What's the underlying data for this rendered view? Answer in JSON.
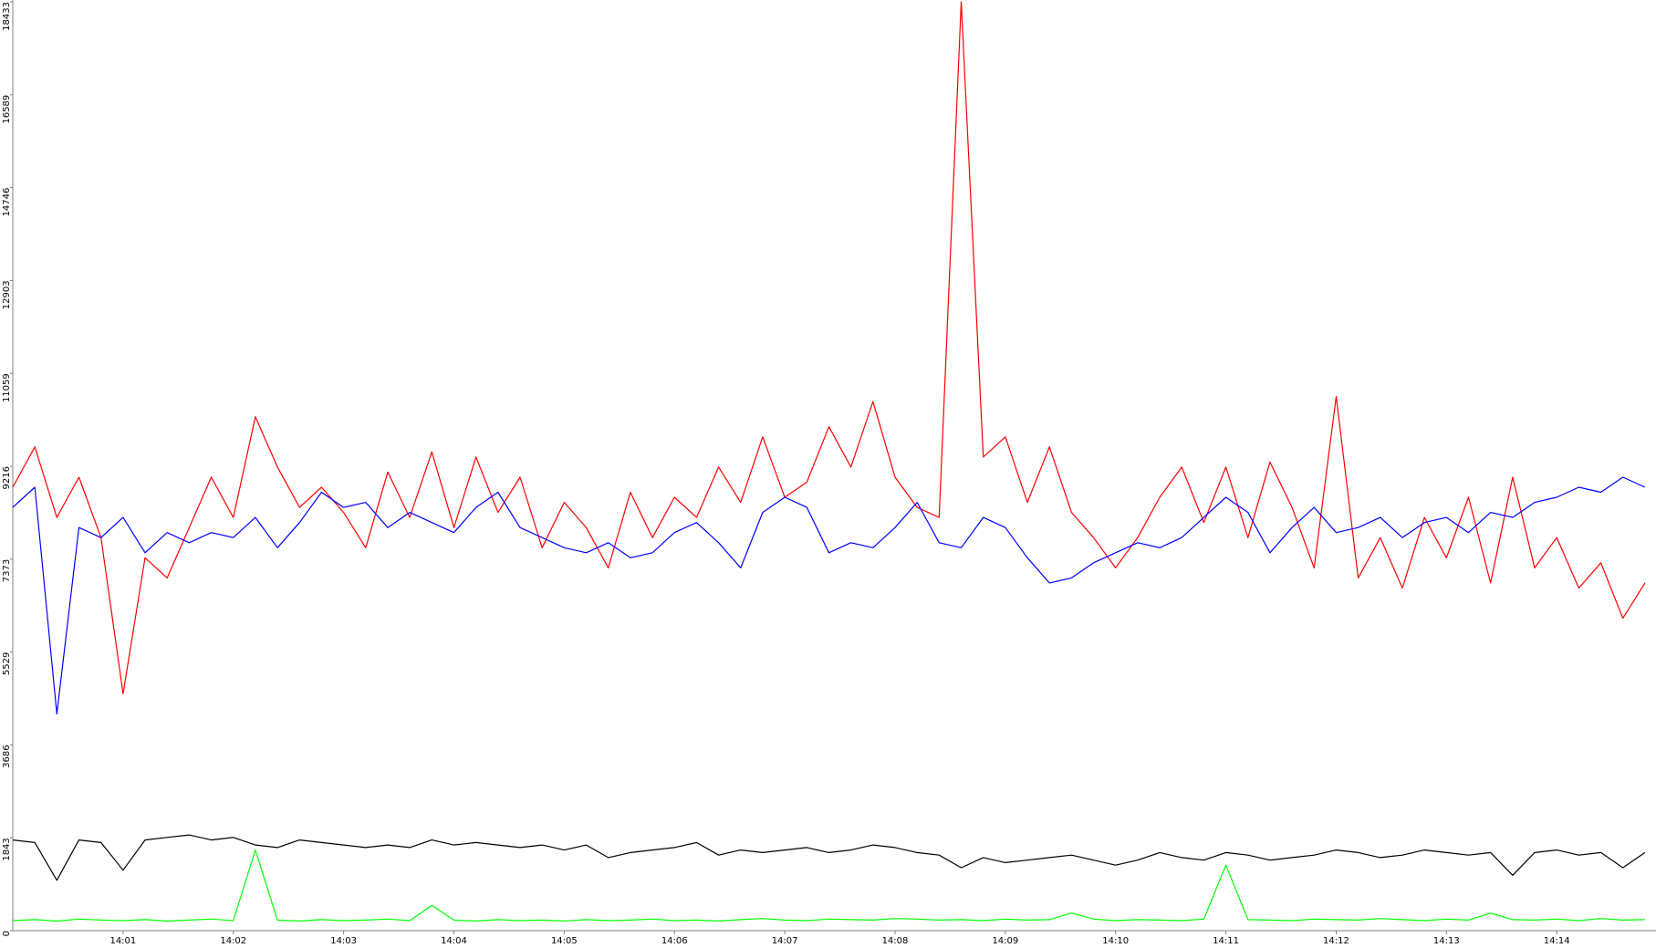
{
  "chart_data": {
    "type": "line",
    "x": [
      0,
      0.2,
      0.4,
      0.6,
      0.8,
      1,
      1.2,
      1.4,
      1.6,
      1.8,
      2,
      2.2,
      2.4,
      2.6,
      2.8,
      3,
      3.2,
      3.4,
      3.6,
      3.8,
      4,
      4.2,
      4.4,
      4.6,
      4.8,
      5,
      5.2,
      5.4,
      5.6,
      5.8,
      6,
      6.2,
      6.4,
      6.6,
      6.8,
      7,
      7.2,
      7.4,
      7.6,
      7.8,
      8,
      8.2,
      8.4,
      8.6,
      8.8,
      9,
      9.2,
      9.4,
      9.6,
      9.8,
      10,
      10.2,
      10.4,
      10.6,
      10.8,
      11,
      11.2,
      11.4,
      11.6,
      11.8,
      12,
      12.2,
      12.4,
      12.6,
      12.8,
      13,
      13.2,
      13.4,
      13.6,
      13.8,
      14,
      14.2,
      14.4,
      14.6,
      14.8
    ],
    "series": [
      {
        "color": "#ff0000",
        "values": [
          8800,
          9600,
          8200,
          9000,
          7800,
          4700,
          7400,
          7000,
          8000,
          9000,
          8200,
          10200,
          9200,
          8400,
          8800,
          8300,
          7600,
          9100,
          8200,
          9500,
          8000,
          9400,
          8300,
          9000,
          7600,
          8500,
          8000,
          7200,
          8700,
          7800,
          8600,
          8200,
          9200,
          8500,
          9800,
          8600,
          8900,
          10000,
          9200,
          10500,
          9000,
          8400,
          8200,
          18433,
          9400,
          9800,
          8500,
          9600,
          8300,
          7800,
          7200,
          7800,
          8600,
          9200,
          8100,
          9200,
          7800,
          9300,
          8400,
          7200,
          10600,
          7000,
          7800,
          6800,
          8200,
          7400,
          8600,
          6900,
          9000,
          7200,
          7800,
          6800,
          7300,
          6200,
          6900
        ]
      },
      {
        "color": "#0000ff",
        "values": [
          8400,
          8800,
          4300,
          8000,
          7800,
          8200,
          7500,
          7900,
          7700,
          7900,
          7800,
          8200,
          7600,
          8100,
          8700,
          8400,
          8500,
          8000,
          8300,
          8100,
          7900,
          8400,
          8700,
          8000,
          7800,
          7600,
          7500,
          7700,
          7400,
          7500,
          7900,
          8100,
          7700,
          7200,
          8300,
          8600,
          8400,
          7500,
          7700,
          7600,
          8000,
          8500,
          7700,
          7600,
          8200,
          8000,
          7400,
          6900,
          7000,
          7300,
          7500,
          7700,
          7600,
          7800,
          8200,
          8600,
          8300,
          7500,
          8000,
          8400,
          7900,
          8000,
          8200,
          7800,
          8100,
          8200,
          7900,
          8300,
          8200,
          8500,
          8600,
          8800,
          8700,
          9000,
          8800
        ]
      },
      {
        "color": "#000000",
        "values": [
          1800,
          1750,
          1000,
          1800,
          1750,
          1200,
          1800,
          1850,
          1900,
          1800,
          1850,
          1700,
          1650,
          1800,
          1750,
          1700,
          1650,
          1700,
          1650,
          1800,
          1700,
          1750,
          1700,
          1650,
          1700,
          1600,
          1700,
          1450,
          1550,
          1600,
          1650,
          1750,
          1500,
          1600,
          1550,
          1600,
          1650,
          1550,
          1600,
          1700,
          1650,
          1550,
          1500,
          1250,
          1450,
          1350,
          1400,
          1450,
          1500,
          1400,
          1300,
          1400,
          1550,
          1450,
          1400,
          1550,
          1500,
          1400,
          1450,
          1500,
          1600,
          1550,
          1450,
          1500,
          1600,
          1550,
          1500,
          1550,
          1100,
          1550,
          1600,
          1500,
          1550,
          1250,
          1550
        ]
      },
      {
        "color": "#00ff00",
        "values": [
          200,
          220,
          190,
          230,
          210,
          200,
          220,
          190,
          210,
          230,
          200,
          1600,
          210,
          190,
          220,
          200,
          210,
          230,
          200,
          500,
          210,
          190,
          220,
          200,
          210,
          190,
          220,
          200,
          210,
          230,
          200,
          210,
          190,
          220,
          240,
          210,
          200,
          230,
          220,
          210,
          240,
          230,
          210,
          220,
          200,
          230,
          210,
          220,
          350,
          230,
          200,
          220,
          210,
          200,
          230,
          1300,
          220,
          210,
          200,
          230,
          220,
          210,
          240,
          220,
          200,
          230,
          210,
          350,
          220,
          210,
          230,
          200,
          240,
          210,
          220
        ]
      }
    ],
    "xlim": [
      0,
      14.9
    ],
    "xticks": [
      {
        "value": 1,
        "label": "14:01"
      },
      {
        "value": 2,
        "label": "14:02"
      },
      {
        "value": 3,
        "label": "14:03"
      },
      {
        "value": 4,
        "label": "14:04"
      },
      {
        "value": 5,
        "label": "14:05"
      },
      {
        "value": 6,
        "label": "14:06"
      },
      {
        "value": 7,
        "label": "14:07"
      },
      {
        "value": 8,
        "label": "14:08"
      },
      {
        "value": 9,
        "label": "14:09"
      },
      {
        "value": 10,
        "label": "14:10"
      },
      {
        "value": 11,
        "label": "14:11"
      },
      {
        "value": 12,
        "label": "14:12"
      },
      {
        "value": 13,
        "label": "14:13"
      },
      {
        "value": 14,
        "label": "14:14"
      }
    ],
    "ylim": [
      0,
      18433
    ],
    "yticks": [
      0,
      1843,
      3686,
      5529,
      7373,
      9216,
      11059,
      12903,
      14746,
      16589,
      18433
    ],
    "grid": false
  }
}
